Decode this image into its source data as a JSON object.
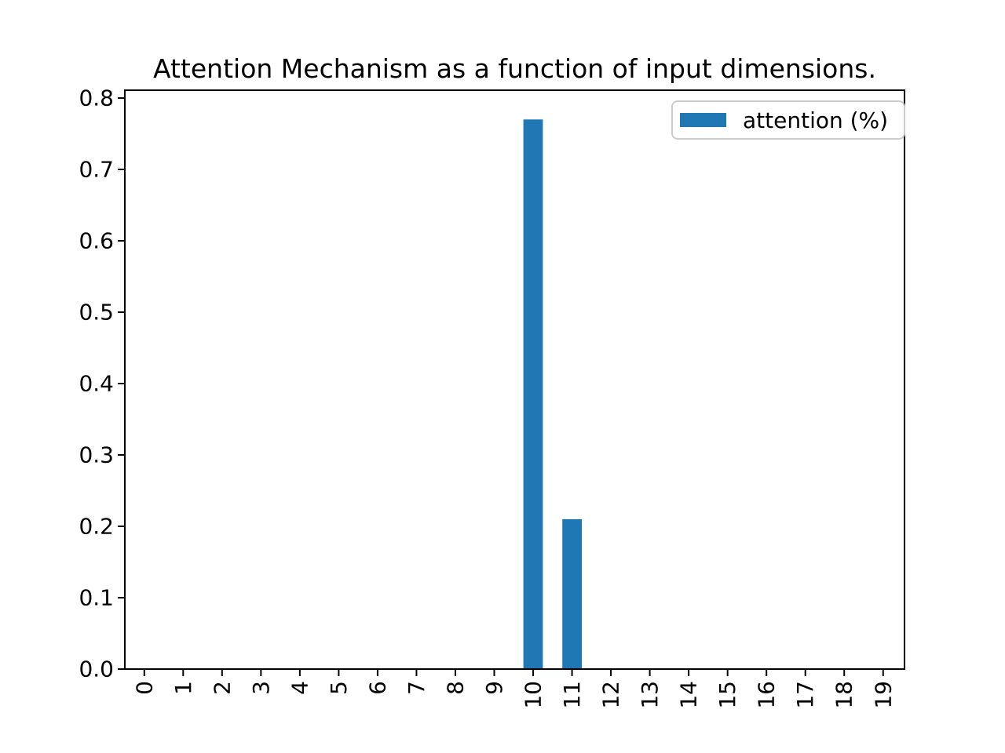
{
  "figure": {
    "background": "#ffffff",
    "axes_color": "#000000"
  },
  "chart_data": {
    "type": "bar",
    "title": "Attention Mechanism as a function of input dimensions.",
    "xlabel": "",
    "ylabel": "",
    "categories": [
      "0",
      "1",
      "2",
      "3",
      "4",
      "5",
      "6",
      "7",
      "8",
      "9",
      "10",
      "11",
      "12",
      "13",
      "14",
      "15",
      "16",
      "17",
      "18",
      "19"
    ],
    "series": [
      {
        "name": "attention (%)",
        "values": [
          0,
          0,
          0,
          0,
          0,
          0,
          0,
          0,
          0,
          0,
          0.77,
          0.21,
          0,
          0,
          0,
          0,
          0,
          0,
          0,
          0
        ]
      }
    ],
    "bar_color": "#1f77b4",
    "bar_width": 0.5,
    "xlim": [
      -0.5,
      19.55
    ],
    "ylim": [
      0,
      0.811
    ],
    "yticks": [
      0.0,
      0.1,
      0.2,
      0.3,
      0.4,
      0.5,
      0.6,
      0.7,
      0.8
    ],
    "ytick_labels": [
      "0.0",
      "0.1",
      "0.2",
      "0.3",
      "0.4",
      "0.5",
      "0.6",
      "0.7",
      "0.8"
    ],
    "x_tick_rotation": 90,
    "grid": false,
    "legend": {
      "position": "upper right",
      "entries": [
        "attention (%)"
      ]
    }
  }
}
